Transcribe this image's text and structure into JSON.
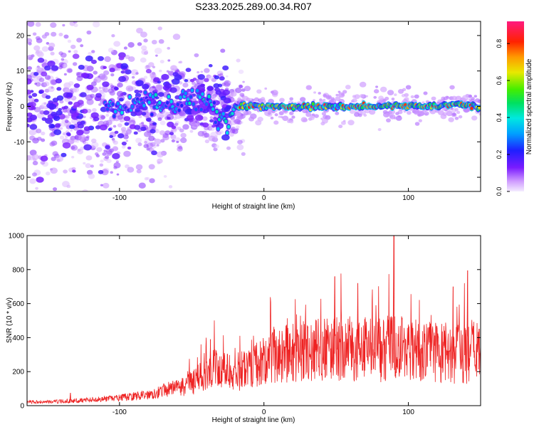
{
  "figure": {
    "title": "S233.2025.289.00.34.R07"
  },
  "colorbar": {
    "label": "Normalized spectral amplitude",
    "ticks": [
      "0.0",
      "0.2",
      "0.4",
      "0.6",
      "0.8"
    ],
    "range": [
      0.0,
      0.92
    ]
  },
  "chart_data": [
    {
      "type": "heatmap",
      "name": "spectrogram",
      "xlabel": "Height of straight line (km)",
      "ylabel": "Frequency (Hz)",
      "xlim": [
        -164,
        150
      ],
      "ylim": [
        -24,
        24
      ],
      "xticks": [
        "-100",
        "0",
        "100"
      ],
      "yticks": [
        "-20",
        "-10",
        "0",
        "10",
        "20"
      ],
      "description_of_content": "Broad noisy low-amplitude scatter for heights below about -30 km; a narrow high-amplitude band centred near 0 Hz from about -20 km to 150 km with peaks near 0.9",
      "ridge": {
        "x": [
          -105,
          -80,
          -60,
          -40,
          -32,
          -25,
          -20,
          0,
          20,
          40,
          60,
          80,
          100,
          120,
          135,
          150
        ],
        "y": [
          0,
          0.8,
          1.5,
          2.5,
          -3,
          -5,
          0,
          0,
          0,
          0,
          0,
          0,
          0,
          0,
          0.8,
          -0.5
        ]
      }
    },
    {
      "type": "line",
      "name": "snr",
      "xlabel": "Height of straight line (km)",
      "ylabel": "SNR (10 * v/v)",
      "xlim": [
        -164,
        150
      ],
      "ylim": [
        0,
        1000
      ],
      "xticks": [
        "-100",
        "0",
        "100"
      ],
      "yticks": [
        "0",
        "200",
        "400",
        "600",
        "800",
        "1000"
      ],
      "color": "#ee2222",
      "envelope": {
        "x": [
          -164,
          -140,
          -120,
          -100,
          -80,
          -60,
          -50,
          -40,
          -35,
          -30,
          -20,
          -10,
          0,
          10,
          20,
          40,
          60,
          80,
          90,
          100,
          120,
          140,
          145,
          150
        ],
        "y": [
          20,
          25,
          35,
          45,
          65,
          110,
          160,
          220,
          260,
          250,
          230,
          290,
          320,
          360,
          380,
          400,
          410,
          390,
          420,
          390,
          380,
          360,
          420,
          340
        ]
      },
      "peaks": [
        {
          "x": -134,
          "y": 75
        },
        {
          "x": -37,
          "y": 390
        },
        {
          "x": 49,
          "y": 760
        },
        {
          "x": 65,
          "y": 720
        },
        {
          "x": 90,
          "y": 1000
        },
        {
          "x": 131,
          "y": 700
        },
        {
          "x": 141,
          "y": 795
        },
        {
          "x": 149,
          "y": 450
        }
      ]
    }
  ]
}
